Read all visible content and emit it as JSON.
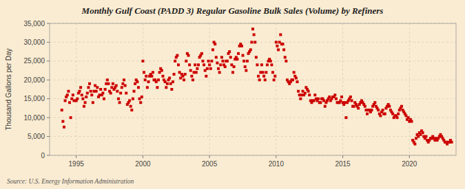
{
  "chart_data": {
    "type": "scatter",
    "title": "Monthly Gulf Coast (PADD 3) Regular Gasoline Bulk Sales (Volume) by Refiners",
    "ylabel": "Thousand Gallons per Day",
    "annotations": [
      "Source: U.S. Energy Information Administration"
    ],
    "color": "#cc0000",
    "marker": "square",
    "grid": true,
    "xlim": [
      1993.0,
      2023.5
    ],
    "xticks": [
      1995,
      2000,
      2005,
      2010,
      2015,
      2020
    ],
    "ylim": [
      0,
      35000
    ],
    "yticks": [
      0,
      {
        "value": 5000,
        "label": "5,000"
      },
      {
        "value": 10000,
        "label": "10,000"
      },
      {
        "value": 15000,
        "label": "15,000"
      },
      {
        "value": 20000,
        "label": "20,000"
      },
      {
        "value": 25000,
        "label": "25,000"
      },
      {
        "value": 30000,
        "label": "30,000"
      },
      {
        "value": 35000,
        "label": "35,000"
      }
    ],
    "x": [
      1993.917,
      1994.0,
      1994.083,
      1994.167,
      1994.25,
      1994.333,
      1994.417,
      1994.5,
      1994.583,
      1994.667,
      1994.75,
      1994.833,
      1995.0,
      1995.083,
      1995.167,
      1995.25,
      1995.333,
      1995.417,
      1995.5,
      1995.583,
      1995.667,
      1995.75,
      1995.833,
      1995.917,
      1996.0,
      1996.083,
      1996.167,
      1996.25,
      1996.333,
      1996.417,
      1996.5,
      1996.583,
      1996.667,
      1996.75,
      1996.833,
      1996.917,
      1997.0,
      1997.083,
      1997.167,
      1997.25,
      1997.333,
      1997.417,
      1997.5,
      1997.583,
      1997.667,
      1997.75,
      1997.833,
      1997.917,
      1998.0,
      1998.083,
      1998.167,
      1998.25,
      1998.333,
      1998.417,
      1998.5,
      1998.583,
      1998.667,
      1998.75,
      1998.833,
      1998.917,
      1999.0,
      1999.083,
      1999.167,
      1999.25,
      1999.333,
      1999.417,
      1999.5,
      1999.583,
      1999.667,
      1999.75,
      1999.833,
      1999.917,
      2000.0,
      2000.083,
      2000.167,
      2000.25,
      2000.333,
      2000.417,
      2000.5,
      2000.583,
      2000.667,
      2000.75,
      2000.833,
      2000.917,
      2001.0,
      2001.083,
      2001.167,
      2001.25,
      2001.333,
      2001.417,
      2001.5,
      2001.583,
      2001.667,
      2001.75,
      2001.833,
      2001.917,
      2002.0,
      2002.083,
      2002.167,
      2002.25,
      2002.333,
      2002.417,
      2002.5,
      2002.583,
      2002.667,
      2002.75,
      2002.833,
      2002.917,
      2003.0,
      2003.083,
      2003.167,
      2003.25,
      2003.333,
      2003.417,
      2003.5,
      2003.583,
      2003.667,
      2003.75,
      2003.833,
      2003.917,
      2004.0,
      2004.083,
      2004.167,
      2004.25,
      2004.333,
      2004.417,
      2004.5,
      2004.583,
      2004.667,
      2004.75,
      2004.833,
      2004.917,
      2005.0,
      2005.083,
      2005.167,
      2005.25,
      2005.333,
      2005.417,
      2005.5,
      2005.583,
      2005.667,
      2005.75,
      2005.833,
      2005.917,
      2006.0,
      2006.083,
      2006.167,
      2006.25,
      2006.333,
      2006.417,
      2006.5,
      2006.583,
      2006.667,
      2006.75,
      2006.833,
      2006.917,
      2007.0,
      2007.083,
      2007.167,
      2007.25,
      2007.333,
      2007.417,
      2007.5,
      2007.583,
      2007.667,
      2007.75,
      2007.833,
      2007.917,
      2008.0,
      2008.083,
      2008.167,
      2008.25,
      2008.333,
      2008.417,
      2008.5,
      2008.583,
      2008.667,
      2008.75,
      2008.833,
      2008.917,
      2009.0,
      2009.083,
      2009.167,
      2009.25,
      2009.333,
      2009.417,
      2009.5,
      2009.583,
      2009.667,
      2009.75,
      2009.833,
      2009.917,
      2010.0,
      2010.083,
      2010.167,
      2010.25,
      2010.333,
      2010.417,
      2010.5,
      2010.583,
      2010.667,
      2010.75,
      2010.833,
      2010.917,
      2011.0,
      2011.083,
      2011.167,
      2011.25,
      2011.333,
      2011.417,
      2011.5,
      2011.583,
      2011.667,
      2011.75,
      2011.833,
      2011.917,
      2012.0,
      2012.083,
      2012.167,
      2012.25,
      2012.333,
      2012.417,
      2012.5,
      2012.583,
      2012.667,
      2012.75,
      2012.833,
      2012.917,
      2013.0,
      2013.083,
      2013.167,
      2013.25,
      2013.333,
      2013.417,
      2013.5,
      2013.583,
      2013.667,
      2013.75,
      2013.833,
      2013.917,
      2014.0,
      2014.083,
      2014.167,
      2014.25,
      2014.333,
      2014.417,
      2014.5,
      2014.583,
      2014.667,
      2014.75,
      2014.833,
      2014.917,
      2015.0,
      2015.083,
      2015.167,
      2015.25,
      2015.333,
      2015.417,
      2015.5,
      2015.583,
      2015.667,
      2015.75,
      2015.833,
      2015.917,
      2016.0,
      2016.083,
      2016.167,
      2016.25,
      2016.333,
      2016.417,
      2016.5,
      2016.583,
      2016.667,
      2016.75,
      2016.833,
      2016.917,
      2017.0,
      2017.083,
      2017.167,
      2017.25,
      2017.333,
      2017.417,
      2017.5,
      2017.583,
      2017.667,
      2017.75,
      2017.833,
      2017.917,
      2018.0,
      2018.083,
      2018.167,
      2018.25,
      2018.333,
      2018.417,
      2018.5,
      2018.583,
      2018.667,
      2018.75,
      2018.833,
      2018.917,
      2019.0,
      2019.083,
      2019.167,
      2019.25,
      2019.333,
      2019.417,
      2019.5,
      2019.583,
      2019.667,
      2019.75,
      2019.833,
      2019.917,
      2020.0,
      2020.083,
      2020.167,
      2020.25,
      2020.333,
      2020.417,
      2020.5,
      2020.583,
      2020.667,
      2020.75,
      2020.833,
      2020.917,
      2021.0,
      2021.083,
      2021.167,
      2021.25,
      2021.333,
      2021.417,
      2021.5,
      2021.583,
      2021.667,
      2021.75,
      2021.833,
      2021.917,
      2022.0,
      2022.083,
      2022.167,
      2022.25,
      2022.333,
      2022.417,
      2022.5,
      2022.583,
      2022.667,
      2022.75,
      2022.833,
      2022.917,
      2023.0,
      2023.083,
      2023.167
    ],
    "values": [
      12000,
      9000,
      7500,
      14500,
      15500,
      16000,
      17000,
      14000,
      10000,
      15000,
      16000,
      14500,
      14500,
      15000,
      16500,
      17000,
      18000,
      16000,
      15000,
      13000,
      14000,
      15500,
      16500,
      18000,
      19000,
      17000,
      16000,
      14000,
      17000,
      18500,
      17000,
      18000,
      15500,
      16000,
      17500,
      16000,
      16500,
      15000,
      17500,
      19000,
      20000,
      19000,
      17000,
      16500,
      18000,
      19000,
      17500,
      18000,
      18500,
      17000,
      15000,
      14000,
      16500,
      18000,
      19000,
      20000,
      18500,
      16500,
      13500,
      14000,
      14500,
      13000,
      12000,
      15000,
      17000,
      19000,
      20000,
      19500,
      18000,
      15000,
      14000,
      15500,
      25000,
      22000,
      20000,
      21000,
      18000,
      19500,
      21000,
      21500,
      21000,
      22000,
      20000,
      20000,
      19500,
      18000,
      20000,
      22000,
      23000,
      22500,
      21000,
      20000,
      19500,
      18000,
      19000,
      20000,
      20500,
      19000,
      17500,
      19500,
      21500,
      25000,
      26000,
      26500,
      24000,
      22000,
      20500,
      21500,
      21000,
      20000,
      21500,
      25000,
      27000,
      26500,
      24000,
      22500,
      21000,
      20000,
      22000,
      24000,
      22000,
      23000,
      24000,
      26000,
      26500,
      27000,
      25000,
      24000,
      22500,
      21000,
      23000,
      25000,
      24000,
      23000,
      25000,
      28000,
      30000,
      29500,
      26000,
      24500,
      23000,
      22000,
      24000,
      26000,
      25000,
      24000,
      23500,
      25000,
      25000,
      27000,
      27500,
      26000,
      24000,
      22000,
      23500,
      25500,
      26000,
      25500,
      27000,
      29000,
      29500,
      29000,
      26500,
      25000,
      23500,
      22500,
      25000,
      27000,
      27500,
      28000,
      30000,
      33500,
      32000,
      30000,
      26000,
      24000,
      21000,
      20000,
      22000,
      24000,
      22000,
      21000,
      20000,
      22000,
      24000,
      25000,
      25500,
      25000,
      24000,
      22000,
      20000,
      21000,
      30000,
      29000,
      28000,
      30000,
      32000,
      29500,
      29500,
      28000,
      26000,
      25000,
      20000,
      19500,
      19000,
      19500,
      20000,
      20000,
      22000,
      21000,
      20500,
      19500,
      17000,
      16000,
      15000,
      16000,
      17000,
      16000,
      16500,
      18000,
      17500,
      17000,
      16000,
      14500,
      14000,
      14500,
      14500,
      16000,
      15000,
      14500,
      15000,
      14000,
      14000,
      15000,
      15000,
      14500,
      13000,
      14000,
      14500,
      15000,
      15500,
      14500,
      15000,
      15500,
      15500,
      16000,
      15000,
      14000,
      14000,
      14000,
      14500,
      15500,
      14000,
      13500,
      14000,
      10000,
      14000,
      14500,
      15000,
      15500,
      14500,
      13000,
      13000,
      14000,
      13500,
      13000,
      12500,
      13500,
      14000,
      14500,
      14000,
      13500,
      13000,
      12000,
      11000,
      12000,
      12000,
      11500,
      12000,
      13000,
      13500,
      14000,
      13000,
      12500,
      12000,
      11000,
      10500,
      11500,
      12000,
      11000,
      11000,
      12500,
      13000,
      13500,
      13000,
      12000,
      11500,
      11000,
      10000,
      10500,
      10500,
      10000,
      11000,
      12000,
      12500,
      13000,
      12000,
      11500,
      11000,
      10500,
      9500,
      10000,
      9000,
      9500,
      9000,
      4000,
      3500,
      3000,
      4500,
      5500,
      5000,
      6000,
      5500,
      6500,
      6000,
      5000,
      4500,
      5000,
      4000,
      3500,
      4000,
      4500,
      4500,
      5000,
      4500,
      4000,
      4500,
      4000,
      4500,
      5000,
      5500,
      5000,
      4500,
      4000,
      3500,
      3500,
      3000,
      3500,
      3500,
      4000,
      3500
    ]
  }
}
